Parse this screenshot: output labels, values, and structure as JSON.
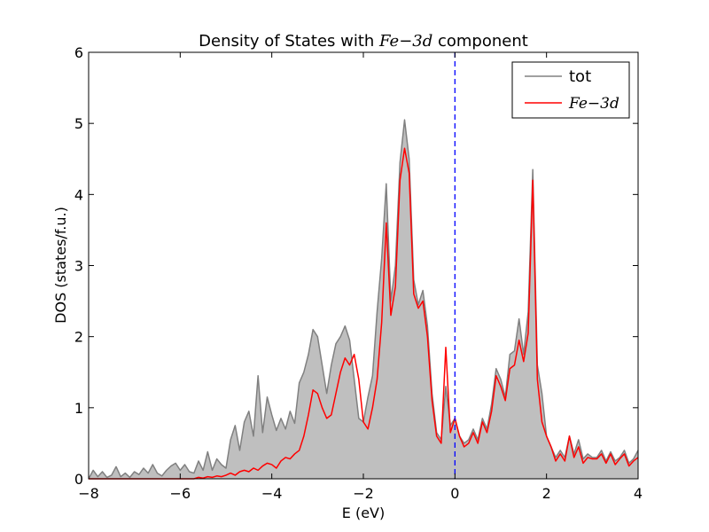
{
  "chart_data": {
    "type": "area",
    "title_prefix": "Density of States with ",
    "title_math": "Fe−3d",
    "title_suffix": " component",
    "xlabel": "E (eV)",
    "ylabel": "DOS (states/f.u.)",
    "xlim": [
      -8,
      4
    ],
    "ylim": [
      0,
      6
    ],
    "xticks": [
      -8,
      -6,
      -4,
      -2,
      0,
      2,
      4
    ],
    "xtick_labels": [
      "−8",
      "−6",
      "−4",
      "−2",
      "0",
      "2",
      "4"
    ],
    "yticks": [
      0,
      1,
      2,
      3,
      4,
      5,
      6
    ],
    "ytick_labels": [
      "0",
      "1",
      "2",
      "3",
      "4",
      "5",
      "6"
    ],
    "grid": false,
    "legend_position": "top-right",
    "fermi_level": 0,
    "fermi_color": "#0000ff",
    "series": [
      {
        "name": "tot",
        "color": "#808080",
        "fill": "#bfbfbf",
        "x": [
          -8.0,
          -7.9,
          -7.8,
          -7.7,
          -7.6,
          -7.5,
          -7.4,
          -7.3,
          -7.2,
          -7.1,
          -7.0,
          -6.9,
          -6.8,
          -6.7,
          -6.6,
          -6.5,
          -6.4,
          -6.3,
          -6.2,
          -6.1,
          -6.0,
          -5.9,
          -5.8,
          -5.7,
          -5.6,
          -5.5,
          -5.4,
          -5.3,
          -5.2,
          -5.1,
          -5.0,
          -4.9,
          -4.8,
          -4.7,
          -4.6,
          -4.5,
          -4.4,
          -4.3,
          -4.2,
          -4.1,
          -4.0,
          -3.9,
          -3.8,
          -3.7,
          -3.6,
          -3.5,
          -3.4,
          -3.3,
          -3.2,
          -3.1,
          -3.0,
          -2.9,
          -2.8,
          -2.7,
          -2.6,
          -2.5,
          -2.4,
          -2.3,
          -2.2,
          -2.1,
          -2.0,
          -1.9,
          -1.8,
          -1.7,
          -1.6,
          -1.5,
          -1.4,
          -1.3,
          -1.2,
          -1.1,
          -1.0,
          -0.9,
          -0.8,
          -0.7,
          -0.6,
          -0.5,
          -0.4,
          -0.3,
          -0.2,
          -0.1,
          0.0,
          0.1,
          0.2,
          0.3,
          0.4,
          0.5,
          0.6,
          0.7,
          0.8,
          0.9,
          1.0,
          1.1,
          1.2,
          1.3,
          1.4,
          1.5,
          1.6,
          1.7,
          1.8,
          1.9,
          2.0,
          2.1,
          2.2,
          2.3,
          2.4,
          2.5,
          2.6,
          2.7,
          2.8,
          2.9,
          3.0,
          3.1,
          3.2,
          3.3,
          3.4,
          3.5,
          3.6,
          3.7,
          3.8,
          3.9,
          4.0
        ],
        "y": [
          0.0,
          0.12,
          0.03,
          0.1,
          0.02,
          0.05,
          0.17,
          0.03,
          0.08,
          0.02,
          0.1,
          0.06,
          0.15,
          0.08,
          0.2,
          0.08,
          0.04,
          0.12,
          0.18,
          0.22,
          0.12,
          0.2,
          0.1,
          0.08,
          0.25,
          0.12,
          0.38,
          0.12,
          0.28,
          0.2,
          0.15,
          0.55,
          0.75,
          0.4,
          0.8,
          0.95,
          0.6,
          1.45,
          0.65,
          1.15,
          0.9,
          0.68,
          0.85,
          0.7,
          0.95,
          0.78,
          1.35,
          1.5,
          1.75,
          2.1,
          2.0,
          1.6,
          1.2,
          1.6,
          1.9,
          2.0,
          2.15,
          1.95,
          1.4,
          0.85,
          0.8,
          1.15,
          1.45,
          2.35,
          3.1,
          4.15,
          2.5,
          3.0,
          4.45,
          5.05,
          4.5,
          2.8,
          2.45,
          2.65,
          2.15,
          1.2,
          0.65,
          0.55,
          1.3,
          0.75,
          0.85,
          0.6,
          0.5,
          0.55,
          0.7,
          0.55,
          0.85,
          0.7,
          1.05,
          1.55,
          1.4,
          1.15,
          1.75,
          1.8,
          2.25,
          1.75,
          2.35,
          4.35,
          1.6,
          1.2,
          0.6,
          0.45,
          0.3,
          0.4,
          0.3,
          0.6,
          0.35,
          0.55,
          0.28,
          0.35,
          0.3,
          0.3,
          0.4,
          0.25,
          0.38,
          0.25,
          0.3,
          0.4,
          0.22,
          0.28,
          0.4
        ]
      },
      {
        "name": "Fe−3d",
        "color": "#ff0000",
        "x": [
          -8.0,
          -7.9,
          -7.8,
          -7.7,
          -7.6,
          -7.5,
          -7.4,
          -7.3,
          -7.2,
          -7.1,
          -7.0,
          -6.9,
          -6.8,
          -6.7,
          -6.6,
          -6.5,
          -6.4,
          -6.3,
          -6.2,
          -6.1,
          -6.0,
          -5.9,
          -5.8,
          -5.7,
          -5.6,
          -5.5,
          -5.4,
          -5.3,
          -5.2,
          -5.1,
          -5.0,
          -4.9,
          -4.8,
          -4.7,
          -4.6,
          -4.5,
          -4.4,
          -4.3,
          -4.2,
          -4.1,
          -4.0,
          -3.9,
          -3.8,
          -3.7,
          -3.6,
          -3.5,
          -3.4,
          -3.3,
          -3.2,
          -3.1,
          -3.0,
          -2.9,
          -2.8,
          -2.7,
          -2.6,
          -2.5,
          -2.4,
          -2.3,
          -2.2,
          -2.1,
          -2.0,
          -1.9,
          -1.8,
          -1.7,
          -1.6,
          -1.5,
          -1.4,
          -1.3,
          -1.2,
          -1.1,
          -1.0,
          -0.9,
          -0.8,
          -0.7,
          -0.6,
          -0.5,
          -0.4,
          -0.3,
          -0.2,
          -0.1,
          0.0,
          0.1,
          0.2,
          0.3,
          0.4,
          0.5,
          0.6,
          0.7,
          0.8,
          0.9,
          1.0,
          1.1,
          1.2,
          1.3,
          1.4,
          1.5,
          1.6,
          1.7,
          1.8,
          1.9,
          2.0,
          2.1,
          2.2,
          2.3,
          2.4,
          2.5,
          2.6,
          2.7,
          2.8,
          2.9,
          3.0,
          3.1,
          3.2,
          3.3,
          3.4,
          3.5,
          3.6,
          3.7,
          3.8,
          3.9,
          4.0
        ],
        "y": [
          0.0,
          0.0,
          0.0,
          0.0,
          0.0,
          0.0,
          0.0,
          0.0,
          0.0,
          0.0,
          0.0,
          0.0,
          0.0,
          0.0,
          0.0,
          0.0,
          0.0,
          0.0,
          0.0,
          0.0,
          0.0,
          0.0,
          0.0,
          0.0,
          0.02,
          0.01,
          0.03,
          0.02,
          0.04,
          0.03,
          0.05,
          0.08,
          0.05,
          0.1,
          0.12,
          0.1,
          0.15,
          0.12,
          0.18,
          0.22,
          0.2,
          0.15,
          0.25,
          0.3,
          0.28,
          0.35,
          0.4,
          0.6,
          0.9,
          1.25,
          1.2,
          1.0,
          0.85,
          0.9,
          1.2,
          1.5,
          1.7,
          1.6,
          1.75,
          1.4,
          0.8,
          0.7,
          1.0,
          1.4,
          2.2,
          3.6,
          2.3,
          2.7,
          4.2,
          4.65,
          4.3,
          2.6,
          2.4,
          2.5,
          2.0,
          1.1,
          0.6,
          0.5,
          1.85,
          0.65,
          0.85,
          0.6,
          0.45,
          0.5,
          0.65,
          0.5,
          0.8,
          0.65,
          0.95,
          1.45,
          1.3,
          1.1,
          1.55,
          1.6,
          1.95,
          1.65,
          2.05,
          4.2,
          1.4,
          0.8,
          0.6,
          0.45,
          0.25,
          0.35,
          0.25,
          0.6,
          0.3,
          0.45,
          0.22,
          0.3,
          0.28,
          0.28,
          0.35,
          0.22,
          0.35,
          0.2,
          0.28,
          0.35,
          0.18,
          0.25,
          0.3
        ]
      }
    ]
  }
}
